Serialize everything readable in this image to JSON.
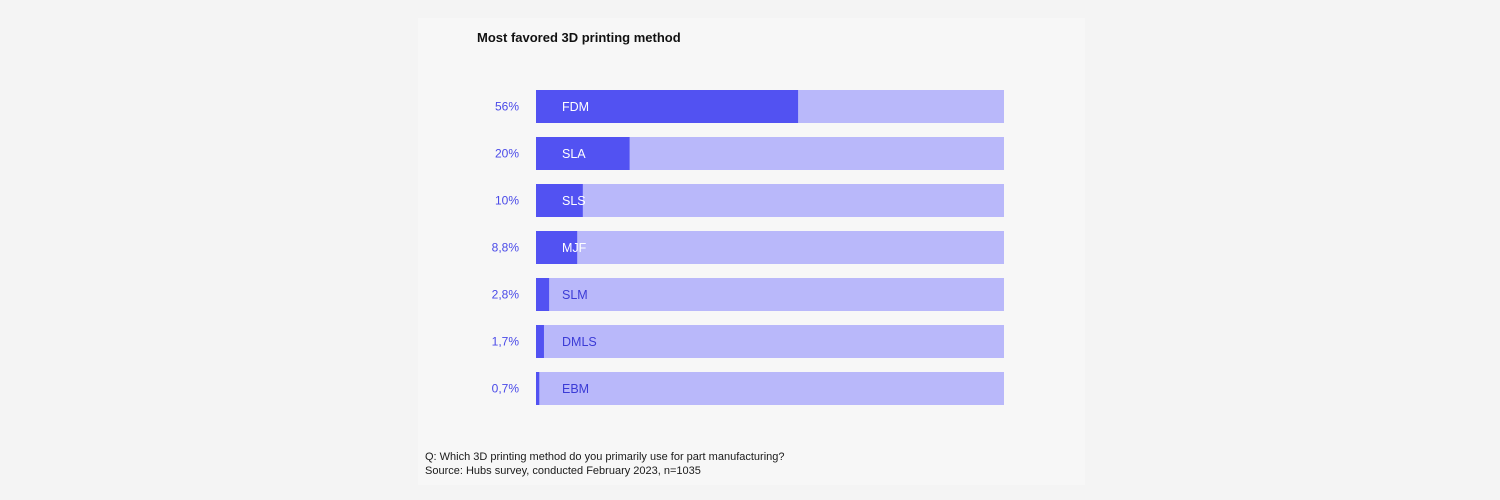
{
  "chart_data": {
    "type": "bar",
    "orientation": "horizontal",
    "title": "Most favored 3D printing method",
    "categories": [
      "FDM",
      "SLA",
      "SLS",
      "MJF",
      "SLM",
      "DMLS",
      "EBM"
    ],
    "values": [
      56,
      20,
      10,
      8.8,
      2.8,
      1.7,
      0.7
    ],
    "value_labels": [
      "56%",
      "20%",
      "10%",
      "8,8%",
      "2,8%",
      "1,7%",
      "0,7%"
    ],
    "xlim": [
      0,
      100
    ],
    "unit": "%",
    "grid": false,
    "legend": "none",
    "colors": {
      "fill": "#5252f2",
      "track": "#b9b8fa",
      "value_label": "#4a4ae8",
      "label_on_fill": "#ffffff",
      "label_on_track": "#3b3bd6"
    }
  },
  "footer": {
    "question": "Q: Which 3D printing method do you primarily use for part manufacturing?",
    "source": "Source: Hubs survey, conducted February 2023, n=1035"
  }
}
